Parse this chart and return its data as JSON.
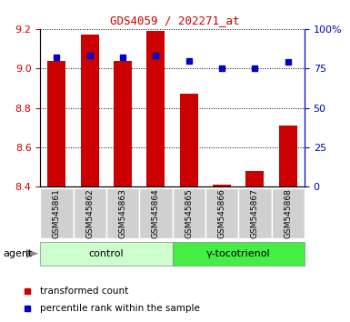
{
  "title": "GDS4059 / 202271_at",
  "samples": [
    "GSM545861",
    "GSM545862",
    "GSM545863",
    "GSM545864",
    "GSM545865",
    "GSM545866",
    "GSM545867",
    "GSM545868"
  ],
  "red_values": [
    9.04,
    9.17,
    9.04,
    9.19,
    8.87,
    8.41,
    8.48,
    8.71
  ],
  "blue_values": [
    82,
    83,
    82,
    83,
    80,
    75,
    75,
    79
  ],
  "ylim_left": [
    8.4,
    9.2
  ],
  "ylim_right": [
    0,
    100
  ],
  "yticks_left": [
    8.4,
    8.6,
    8.8,
    9.0,
    9.2
  ],
  "yticks_right": [
    0,
    25,
    50,
    75,
    100
  ],
  "ytick_labels_right": [
    "0",
    "25",
    "50",
    "75",
    "100%"
  ],
  "groups": [
    {
      "label": "control",
      "indices": [
        0,
        1,
        2,
        3
      ],
      "color": "#ccffcc"
    },
    {
      "label": "γ-tocotrienol",
      "indices": [
        4,
        5,
        6,
        7
      ],
      "color": "#44ee44"
    }
  ],
  "bar_color": "#cc0000",
  "dot_color": "#0000cc",
  "bar_bottom": 8.4,
  "agent_label": "agent",
  "legend_red": "transformed count",
  "legend_blue": "percentile rank within the sample",
  "title_color": "#cc0000",
  "left_tick_color": "#cc0000",
  "right_tick_color": "#0000cc",
  "bar_width": 0.55
}
